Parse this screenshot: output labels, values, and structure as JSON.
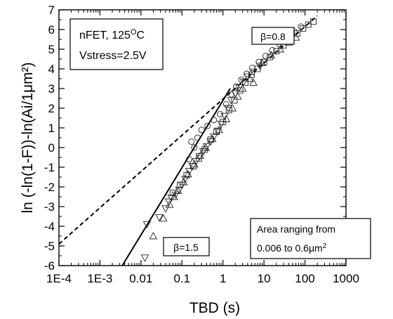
{
  "chart_data": {
    "type": "scatter",
    "xlabel": "TBD (s)",
    "ylabel": "ln (-ln(1-F))-ln(Ai/1μm²)",
    "x_scale": "log",
    "xlim": [
      0.0001,
      1000
    ],
    "ylim": [
      -6,
      7
    ],
    "x_tick_labels": [
      "1E-4",
      "1E-3",
      "0.01",
      "0.1",
      "1",
      "10",
      "100",
      "1000"
    ],
    "x_tick_values": [
      0.0001,
      0.001,
      0.01,
      0.1,
      1,
      10,
      100,
      1000
    ],
    "y_tick_values": [
      -6,
      -5,
      -4,
      -3,
      -2,
      -1,
      0,
      1,
      2,
      3,
      4,
      5,
      6,
      7
    ],
    "grid": false,
    "lines": [
      {
        "style": "solid",
        "points": [
          [
            0.0035,
            -6
          ],
          [
            1.5,
            3
          ]
        ]
      },
      {
        "style": "dashed",
        "points": [
          [
            0.0001,
            -4.9
          ],
          [
            200,
            6.7
          ]
        ]
      }
    ],
    "annotations": {
      "condition_box": {
        "line1": "nFET, 125",
        "line1_sup": "O",
        "line1_after": "C",
        "line2": "Vstress=2.5V"
      },
      "beta_high": "β=0.8",
      "beta_low": "β=1.5",
      "area_box": {
        "line1": "Area ranging from",
        "line2": "0.006 to 0.6μm",
        "line2_sup": "2"
      }
    },
    "series": [
      {
        "marker": "down-triangle",
        "points": [
          [
            0.0125,
            -5.6
          ],
          [
            0.014,
            -3.9
          ],
          [
            0.028,
            -3.55
          ],
          [
            0.04,
            -3.1
          ],
          [
            0.048,
            -2.75
          ],
          [
            0.055,
            -2.55
          ],
          [
            0.07,
            -2.4
          ],
          [
            0.085,
            -2.15
          ],
          [
            0.1,
            -1.9
          ],
          [
            0.12,
            -1.6
          ],
          [
            0.15,
            -1.2
          ],
          [
            0.18,
            -0.95
          ],
          [
            0.22,
            -0.7
          ],
          [
            0.27,
            -0.45
          ],
          [
            0.33,
            -0.2
          ],
          [
            0.4,
            0.05
          ],
          [
            0.5,
            0.3
          ],
          [
            0.6,
            0.55
          ],
          [
            0.75,
            0.85
          ],
          [
            0.9,
            1.2
          ],
          [
            1.1,
            1.6
          ],
          [
            1.35,
            2.0
          ],
          [
            1.6,
            2.4
          ],
          [
            2.0,
            2.75
          ],
          [
            2.5,
            3.05
          ],
          [
            3.2,
            3.35
          ],
          [
            4.0,
            3.6
          ],
          [
            5.5,
            3.85
          ],
          [
            8.0,
            4.15
          ]
        ]
      },
      {
        "marker": "up-triangle",
        "points": [
          [
            0.02,
            -4.5
          ],
          [
            0.035,
            -3.6
          ],
          [
            0.05,
            -2.9
          ],
          [
            0.065,
            -2.5
          ],
          [
            0.08,
            -2.2
          ],
          [
            0.11,
            -1.75
          ],
          [
            0.14,
            -1.35
          ],
          [
            0.2,
            -0.85
          ],
          [
            0.28,
            -0.4
          ],
          [
            0.38,
            0.0
          ],
          [
            0.55,
            0.45
          ],
          [
            0.8,
            0.9
          ],
          [
            1.2,
            1.45
          ],
          [
            1.7,
            2.0
          ],
          [
            2.3,
            2.6
          ],
          [
            3.0,
            3.0
          ],
          [
            4.5,
            3.5
          ],
          [
            5.5,
            3.3
          ],
          [
            9.0,
            4.3
          ],
          [
            15,
            4.7
          ],
          [
            25,
            5.0
          ],
          [
            40,
            5.35
          ],
          [
            60,
            5.6
          ]
        ]
      },
      {
        "marker": "square",
        "points": [
          [
            0.06,
            -2.3
          ],
          [
            0.09,
            -1.9
          ],
          [
            0.13,
            -1.4
          ],
          [
            0.19,
            -0.95
          ],
          [
            0.26,
            -0.55
          ],
          [
            0.36,
            -0.1
          ],
          [
            0.5,
            0.4
          ],
          [
            0.7,
            0.8
          ],
          [
            1.0,
            1.3
          ],
          [
            1.4,
            1.9
          ],
          [
            1.9,
            2.4
          ],
          [
            2.6,
            2.9
          ],
          [
            3.5,
            3.3
          ],
          [
            5.0,
            3.7
          ],
          [
            7.0,
            4.0
          ],
          [
            10,
            4.35
          ],
          [
            14,
            4.6
          ],
          [
            20,
            4.9
          ],
          [
            30,
            5.2
          ],
          [
            45,
            5.5
          ],
          [
            65,
            5.8
          ],
          [
            90,
            6.05
          ],
          [
            120,
            6.25
          ],
          [
            160,
            6.4
          ]
        ]
      },
      {
        "marker": "circle",
        "points": [
          [
            0.15,
            -0.6
          ],
          [
            0.17,
            0.3
          ],
          [
            0.2,
            0.0
          ],
          [
            0.24,
            0.5
          ],
          [
            0.3,
            0.9
          ],
          [
            0.42,
            1.1
          ],
          [
            0.6,
            1.4
          ],
          [
            0.85,
            1.7
          ],
          [
            1.2,
            2.2
          ],
          [
            1.6,
            2.7
          ],
          [
            2.1,
            3.1
          ],
          [
            2.8,
            3.45
          ],
          [
            3.8,
            3.75
          ],
          [
            5.2,
            4.05
          ],
          [
            7.5,
            4.35
          ],
          [
            11,
            4.65
          ],
          [
            16,
            4.95
          ],
          [
            24,
            5.25
          ],
          [
            35,
            5.55
          ],
          [
            55,
            5.9
          ],
          [
            80,
            6.15
          ]
        ]
      }
    ]
  }
}
